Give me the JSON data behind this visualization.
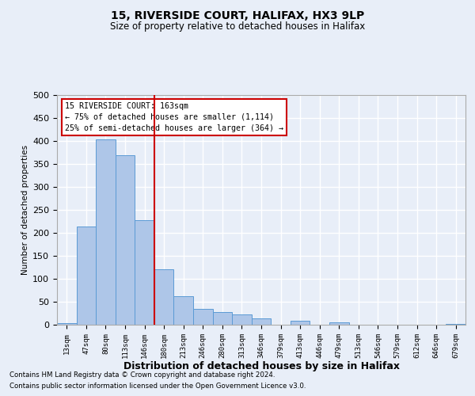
{
  "title1": "15, RIVERSIDE COURT, HALIFAX, HX3 9LP",
  "title2": "Size of property relative to detached houses in Halifax",
  "xlabel": "Distribution of detached houses by size in Halifax",
  "ylabel": "Number of detached properties",
  "categories": [
    "13sqm",
    "47sqm",
    "80sqm",
    "113sqm",
    "146sqm",
    "180sqm",
    "213sqm",
    "246sqm",
    "280sqm",
    "313sqm",
    "346sqm",
    "379sqm",
    "413sqm",
    "446sqm",
    "479sqm",
    "513sqm",
    "546sqm",
    "579sqm",
    "612sqm",
    "646sqm",
    "679sqm"
  ],
  "values": [
    3,
    214,
    404,
    369,
    228,
    120,
    62,
    35,
    28,
    22,
    14,
    0,
    8,
    0,
    5,
    0,
    0,
    0,
    0,
    0,
    1
  ],
  "bar_color": "#aec6e8",
  "bar_edge_color": "#5b9bd5",
  "bg_color": "#e8eef8",
  "grid_color": "#ffffff",
  "annotation_box_bg": "#ffffff",
  "annotation_box_edge": "#cc0000",
  "vline_color": "#cc0000",
  "vline_x": 4.52,
  "annotation_line1": "15 RIVERSIDE COURT: 163sqm",
  "annotation_line2": "← 75% of detached houses are smaller (1,114)",
  "annotation_line3": "25% of semi-detached houses are larger (364) →",
  "footnote1": "Contains HM Land Registry data © Crown copyright and database right 2024.",
  "footnote2": "Contains public sector information licensed under the Open Government Licence v3.0.",
  "ylim": [
    0,
    500
  ],
  "yticks": [
    0,
    50,
    100,
    150,
    200,
    250,
    300,
    350,
    400,
    450,
    500
  ]
}
